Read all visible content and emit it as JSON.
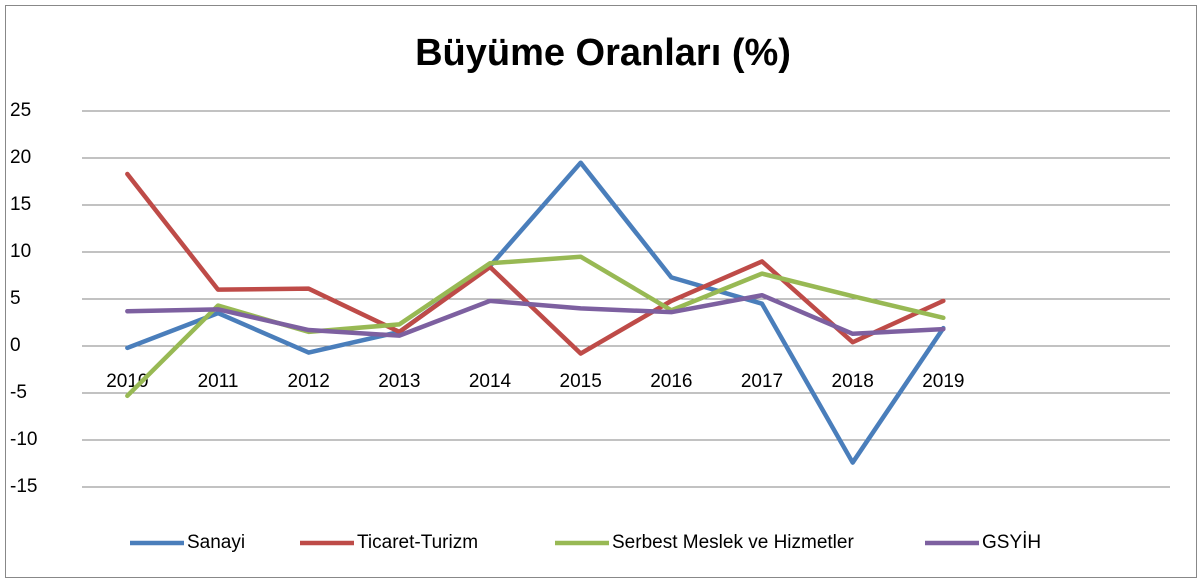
{
  "chart_data": {
    "type": "line",
    "title": "Büyüme Oranları (%)",
    "categories": [
      "2010",
      "2011",
      "2012",
      "2013",
      "2014",
      "2015",
      "2016",
      "2017",
      "2018",
      "2019",
      null,
      null
    ],
    "series": [
      {
        "name": "Sanayi",
        "color": "#4a7ebb",
        "values": [
          -0.2,
          3.5,
          -0.7,
          1.5,
          8.5,
          19.5,
          7.3,
          4.5,
          -12.4,
          1.9,
          null,
          null
        ]
      },
      {
        "name": "Ticaret-Turizm",
        "color": "#be4b48",
        "values": [
          18.3,
          6.0,
          6.1,
          1.5,
          8.4,
          -0.8,
          4.8,
          9.0,
          0.4,
          4.8,
          null,
          null
        ]
      },
      {
        "name": "Serbest Meslek ve Hizmetler",
        "color": "#98b954",
        "values": [
          -5.3,
          4.3,
          1.5,
          2.3,
          8.8,
          9.5,
          3.8,
          7.7,
          5.3,
          3.0,
          null,
          null
        ]
      },
      {
        "name": "GSYİH",
        "color": "#7d60a0",
        "values": [
          3.7,
          3.9,
          1.7,
          1.1,
          4.8,
          4.0,
          3.6,
          5.4,
          1.3,
          1.8,
          null,
          null
        ]
      }
    ],
    "ylim": [
      -15,
      25
    ],
    "yticks": [
      -15,
      -10,
      -5,
      0,
      5,
      10,
      15,
      20,
      25
    ],
    "grid": true,
    "legend": "bottom"
  }
}
